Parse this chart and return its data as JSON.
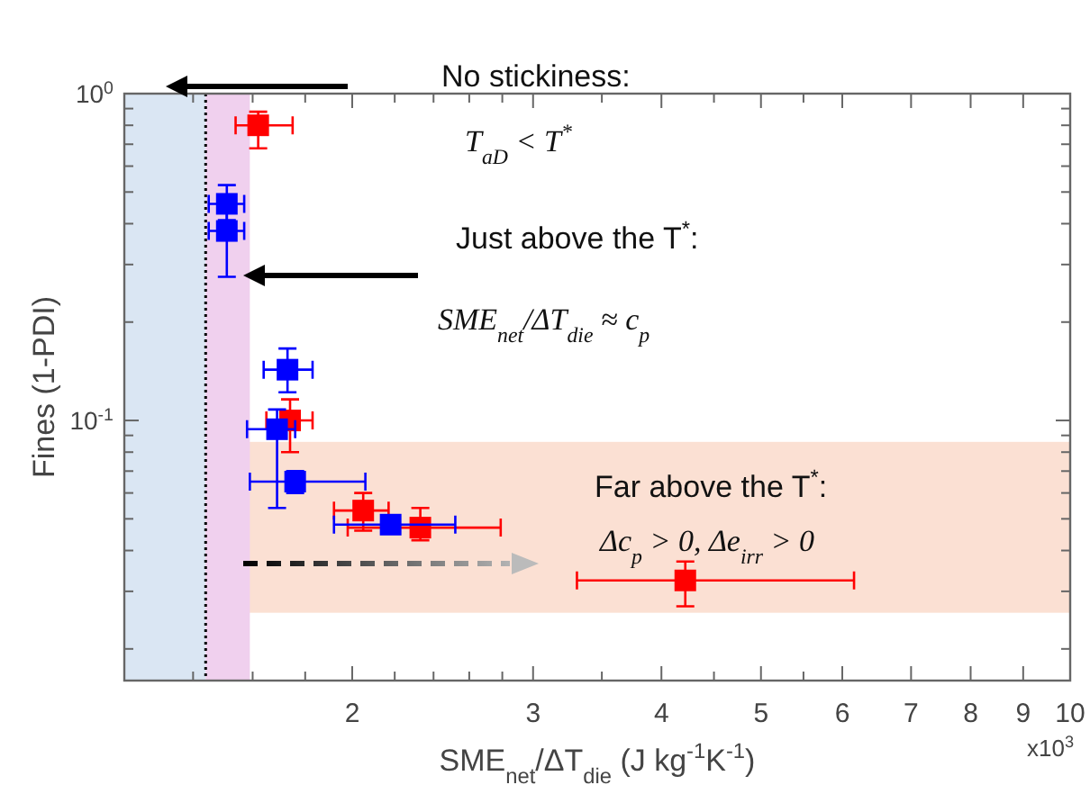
{
  "chart_data": {
    "type": "scatter",
    "xlabel": "SME$_{net}$/ΔT$_{die}$ (J kg$^{-1}$K$^{-1}$)",
    "ylabel": "Fines (1-PDI)",
    "log": "xy",
    "grid": false,
    "marker": "square",
    "xlim": [
      1.2,
      10
    ],
    "ylim": [
      0.016,
      1
    ],
    "xticks": [
      {
        "value": 1.4,
        "label": null
      },
      {
        "value": 1.6,
        "label": null
      },
      {
        "value": 1.8,
        "label": null
      },
      2,
      {
        "value": 2.2,
        "label": null
      },
      {
        "value": 2.4,
        "label": null
      },
      {
        "value": 2.6,
        "label": null
      },
      {
        "value": 2.8,
        "label": null
      },
      3,
      {
        "value": 3.5,
        "label": null
      },
      4,
      {
        "value": 4.5,
        "label": null
      },
      5,
      {
        "value": 5.5,
        "label": null
      },
      6,
      7,
      8,
      9,
      10
    ],
    "yticks": [
      {
        "value": 0.02,
        "label": null
      },
      {
        "value": 0.03,
        "label": null
      },
      {
        "value": 0.04,
        "label": null
      },
      {
        "value": 0.05,
        "label": null
      },
      {
        "value": 0.06,
        "label": null
      },
      {
        "value": 0.07,
        "label": null
      },
      {
        "value": 0.08,
        "label": null
      },
      {
        "value": 0.09,
        "label": null
      },
      {
        "value": 0.1,
        "label": "10$^{-1}$"
      },
      {
        "value": 0.2,
        "label": null
      },
      {
        "value": 0.3,
        "label": null
      },
      {
        "value": 0.4,
        "label": null
      },
      {
        "value": 0.5,
        "label": null
      },
      {
        "value": 0.6,
        "label": null
      },
      {
        "value": 0.7,
        "label": null
      },
      {
        "value": 0.8,
        "label": null
      },
      {
        "value": 0.9,
        "label": null
      },
      {
        "value": 1,
        "label": "10$^{0}$"
      }
    ],
    "series": [
      {
        "color": "#ff0000",
        "x": [
          1.62,
          1.74,
          2.05,
          2.33,
          4.22
        ],
        "values": [
          0.8,
          0.1,
          0.053,
          0.047,
          0.0324
        ],
        "errors": [
          [
            0.68,
            0.88
          ],
          [
            0.08,
            0.116
          ],
          [
            0.046,
            0.06
          ],
          [
            0.043,
            0.054
          ],
          [
            0.027,
            0.037
          ]
        ],
        "xerrors": [
          [
            1.54,
            1.75
          ],
          [
            1.65,
            1.83
          ],
          [
            1.92,
            2.17
          ],
          [
            1.98,
            2.79
          ],
          [
            3.31,
            6.16
          ]
        ]
      },
      {
        "color": "#0000ff",
        "x": [
          1.51,
          1.51,
          1.73,
          1.69,
          1.76,
          2.18
        ],
        "values": [
          0.46,
          0.38,
          0.143,
          0.094,
          0.065,
          0.048
        ],
        "errors": [
          [
            0.41,
            0.525
          ],
          [
            0.275,
            0.434
          ],
          [
            0.122,
            0.166
          ],
          [
            0.054,
            0.108
          ],
          [
            0.06,
            0.07
          ],
          null
        ],
        "xerrors": [
          [
            1.45,
            1.57
          ],
          [
            1.45,
            1.57
          ],
          [
            1.64,
            1.83
          ],
          [
            1.58,
            1.76
          ],
          [
            1.59,
            2.06
          ],
          [
            1.92,
            2.52
          ]
        ]
      }
    ],
    "bands": [
      {
        "axis": "y",
        "from": 0.0258,
        "to": 0.086,
        "color": "#fbe0d3"
      },
      {
        "axis": "x",
        "from": 1.2,
        "to": 1.44,
        "color": "#dae6f3"
      },
      {
        "axis": "x",
        "from": 1.44,
        "to": 1.59,
        "color": "#f0d0ee"
      }
    ],
    "ref_lines": [
      {
        "axis": "x",
        "value": 1.44,
        "color": "#000000",
        "line_style": "dotted"
      }
    ],
    "annotations": [
      "No stickiness:",
      "T$_{aD}$ < T$^{*}$",
      "Just above the T$^{*}$:",
      "SME$_{net}$/ΔT$_{die}$ ≈ c$_{p}$",
      "Far above the T$^{*}$:",
      "Δc$_{p}$ > 0, Δe$_{irr}$ > 0",
      "x10$^{3}$"
    ]
  }
}
